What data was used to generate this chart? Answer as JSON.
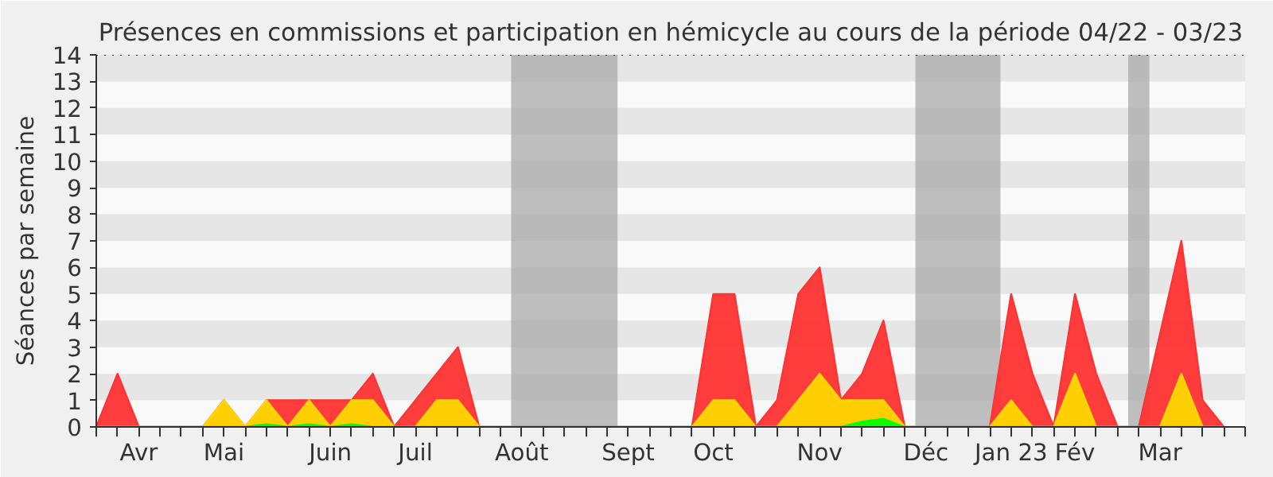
{
  "chart_data": {
    "type": "area",
    "title": "Présences en commissions et participation en hémicycle au cours de la période 04/22 - 03/23",
    "ylabel": "Séances par semaine",
    "categories": [
      null,
      null,
      "Avr",
      null,
      null,
      null,
      "Mai",
      null,
      null,
      null,
      null,
      "Juin",
      null,
      null,
      null,
      "Juil",
      null,
      null,
      null,
      null,
      "Août",
      null,
      null,
      null,
      null,
      "Sept",
      null,
      null,
      null,
      "Oct",
      null,
      null,
      null,
      null,
      "Nov",
      null,
      null,
      null,
      null,
      "Déc",
      null,
      null,
      null,
      "Jan 23",
      null,
      null,
      "Fév",
      null,
      null,
      null,
      "Mar",
      null,
      null,
      null
    ],
    "series": [
      {
        "color": "#ff3333",
        "values": [
          0,
          2,
          0,
          0,
          0,
          0,
          1,
          0,
          1,
          1,
          1,
          1,
          1,
          2,
          0,
          1,
          2,
          3,
          0,
          0,
          0,
          0,
          0,
          0,
          0,
          0,
          0,
          0,
          0,
          5,
          5,
          0,
          1,
          5,
          6,
          1,
          2,
          4,
          0,
          0,
          0,
          0,
          0,
          5,
          2,
          0,
          5,
          2,
          0,
          0,
          3.5,
          7,
          1,
          0
        ]
      },
      {
        "color": "#ffd700",
        "values": [
          0,
          0,
          0,
          0,
          0,
          0,
          1,
          0,
          1,
          0,
          1,
          0,
          1,
          1,
          0,
          0,
          1,
          1,
          0,
          0,
          0,
          0,
          0,
          0,
          0,
          0,
          0,
          0,
          0,
          1,
          1,
          0,
          0,
          1,
          2,
          1,
          1,
          1,
          0,
          0,
          0,
          0,
          0,
          1,
          0,
          0,
          2,
          0,
          0,
          0,
          0,
          2,
          0,
          0
        ]
      },
      {
        "color": "#00ff00",
        "values": [
          0,
          0,
          0,
          0,
          0,
          0,
          0,
          0,
          0.1,
          0,
          0.1,
          0,
          0.1,
          0,
          0,
          0,
          0,
          0,
          0,
          0,
          0,
          0,
          0,
          0,
          0,
          0,
          0,
          0,
          0,
          0,
          0,
          0,
          0,
          0,
          0,
          0,
          0.2,
          0.3,
          0,
          0,
          0,
          0,
          0,
          0,
          0,
          0,
          0,
          0,
          0,
          0,
          0,
          0,
          0,
          0
        ]
      }
    ],
    "ylim": [
      0,
      14
    ],
    "yticks": [
      0,
      1,
      2,
      3,
      4,
      5,
      6,
      7,
      8,
      9,
      10,
      11,
      12,
      13,
      14
    ],
    "grid": false
  }
}
